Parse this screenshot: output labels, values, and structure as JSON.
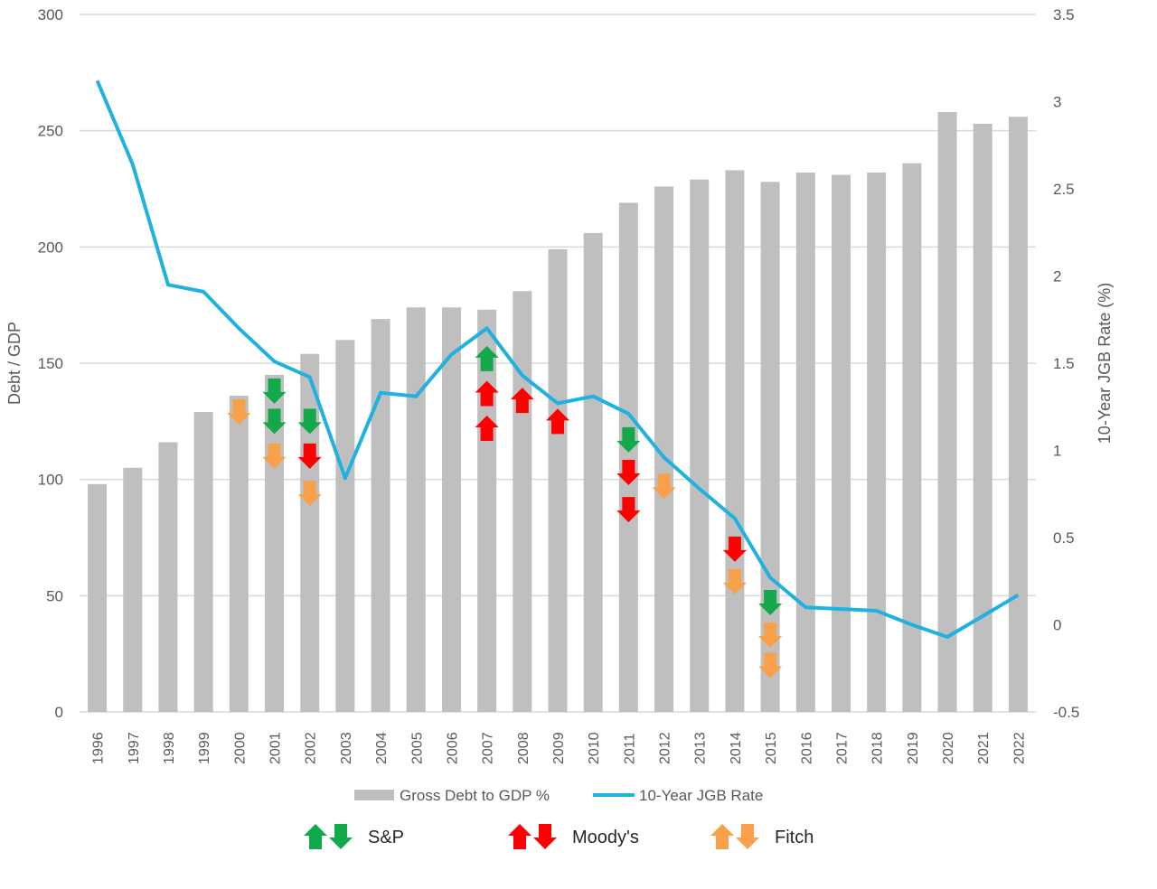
{
  "chart_data": {
    "type": "bar",
    "title": "",
    "xlabel": "",
    "ylabel": "Debt / GDP",
    "y2label": "10-Year JGB Rate (%)",
    "ylim": [
      0,
      300
    ],
    "yticks": [
      0,
      50,
      100,
      150,
      200,
      250,
      300
    ],
    "y2lim": [
      -0.5,
      3.5
    ],
    "y2ticks": [
      "-0.5",
      "0",
      "0.5",
      "1",
      "1.5",
      "2",
      "2.5",
      "3",
      "3.5"
    ],
    "grid": true,
    "categories": [
      "1996",
      "1997",
      "1998",
      "1999",
      "2000",
      "2001",
      "2002",
      "2003",
      "2004",
      "2005",
      "2006",
      "2007",
      "2008",
      "2009",
      "2010",
      "2011",
      "2012",
      "2013",
      "2014",
      "2015",
      "2016",
      "2017",
      "2018",
      "2019",
      "2020",
      "2021",
      "2022"
    ],
    "series": [
      {
        "name": "Gross Debt to GDP %",
        "type": "bar",
        "axis": "left",
        "color": "#bfbfbf",
        "values": [
          98,
          105,
          116,
          129,
          136,
          145,
          154,
          160,
          169,
          174,
          174,
          173,
          181,
          199,
          206,
          219,
          226,
          229,
          233,
          228,
          232,
          231,
          232,
          236,
          258,
          253,
          256
        ]
      },
      {
        "name": "10-Year JGB Rate",
        "type": "line",
        "axis": "right",
        "color": "#1fb1e0",
        "values": [
          3.12,
          2.64,
          1.95,
          1.91,
          1.7,
          1.51,
          1.42,
          0.84,
          1.33,
          1.31,
          1.55,
          1.7,
          1.43,
          1.27,
          1.31,
          1.21,
          0.96,
          0.78,
          0.61,
          0.27,
          0.1,
          0.09,
          0.08,
          0.0,
          -0.07,
          0.05,
          0.17
        ]
      }
    ],
    "legend_position": "bottom",
    "rating_agencies": [
      {
        "name": "S&P",
        "color": "#13a84a"
      },
      {
        "name": "Moody's",
        "color": "#ff0000"
      },
      {
        "name": "Fitch",
        "color": "#f9a04a"
      }
    ],
    "rating_actions": [
      {
        "year": "2000",
        "agency": 2,
        "direction": "down",
        "level": 129
      },
      {
        "year": "2001",
        "agency": 0,
        "direction": "down",
        "level": 138
      },
      {
        "year": "2001",
        "agency": 0,
        "direction": "down",
        "level": 125
      },
      {
        "year": "2001",
        "agency": 2,
        "direction": "down",
        "level": 110
      },
      {
        "year": "2002",
        "agency": 0,
        "direction": "down",
        "level": 125
      },
      {
        "year": "2002",
        "agency": 1,
        "direction": "down",
        "level": 110
      },
      {
        "year": "2002",
        "agency": 2,
        "direction": "down",
        "level": 94
      },
      {
        "year": "2007",
        "agency": 0,
        "direction": "up",
        "level": 152
      },
      {
        "year": "2007",
        "agency": 1,
        "direction": "up",
        "level": 137
      },
      {
        "year": "2007",
        "agency": 1,
        "direction": "up",
        "level": 122
      },
      {
        "year": "2008",
        "agency": 1,
        "direction": "up",
        "level": 134
      },
      {
        "year": "2009",
        "agency": 1,
        "direction": "up",
        "level": 125
      },
      {
        "year": "2011",
        "agency": 0,
        "direction": "down",
        "level": 117
      },
      {
        "year": "2011",
        "agency": 1,
        "direction": "down",
        "level": 103
      },
      {
        "year": "2011",
        "agency": 1,
        "direction": "down",
        "level": 87
      },
      {
        "year": "2012",
        "agency": 2,
        "direction": "down",
        "level": 97
      },
      {
        "year": "2014",
        "agency": 1,
        "direction": "down",
        "level": 70
      },
      {
        "year": "2014",
        "agency": 2,
        "direction": "down",
        "level": 56
      },
      {
        "year": "2015",
        "agency": 0,
        "direction": "down",
        "level": 47
      },
      {
        "year": "2015",
        "agency": 2,
        "direction": "down",
        "level": 33
      },
      {
        "year": "2015",
        "agency": 2,
        "direction": "down",
        "level": 20
      }
    ]
  }
}
